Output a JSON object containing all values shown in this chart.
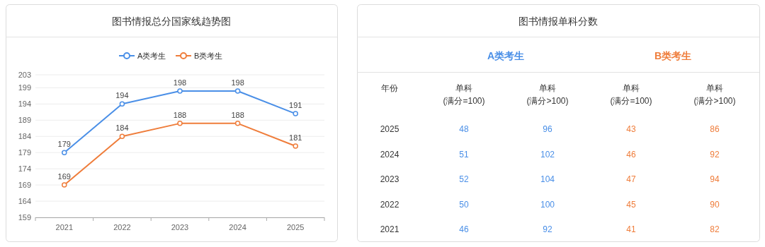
{
  "chart_data": [
    {
      "type": "line",
      "title": "图书情报总分国家线趋势图",
      "categories": [
        "2021",
        "2022",
        "2023",
        "2024",
        "2025"
      ],
      "series": [
        {
          "name": "A类考生",
          "color": "#4a8fe7",
          "values": [
            179,
            194,
            198,
            198,
            191
          ]
        },
        {
          "name": "B类考生",
          "color": "#ef7d3b",
          "values": [
            169,
            184,
            188,
            188,
            181
          ]
        }
      ],
      "ylim": [
        159,
        203
      ],
      "yticks": [
        159,
        164,
        169,
        174,
        179,
        184,
        189,
        194,
        199,
        203
      ],
      "grid": "y",
      "legend": "top",
      "marker": "circle",
      "line_style": "solid",
      "data_labels": true
    },
    {
      "type": "heatmap",
      "title": "图书情报单科分数",
      "ylabel": "年份",
      "categories": [
        "单科\n(满分=100)",
        "单科\n(满分>100)",
        "单科\n(满分=100)",
        "单科\n(满分>100)"
      ],
      "y_categories": [
        "2025",
        "2024",
        "2023",
        "2022",
        "2021"
      ],
      "annotations": [
        "A类考生",
        "B类考生"
      ],
      "colors": [
        "#4a8fe7",
        "#4a8fe7",
        "#ef7d3b",
        "#ef7d3b"
      ],
      "cells": [
        [
          48,
          96,
          43,
          86
        ],
        [
          51,
          102,
          46,
          92
        ],
        [
          52,
          104,
          47,
          94
        ],
        [
          50,
          100,
          45,
          90
        ],
        [
          46,
          92,
          41,
          82
        ]
      ],
      "data_labels": true
    }
  ]
}
